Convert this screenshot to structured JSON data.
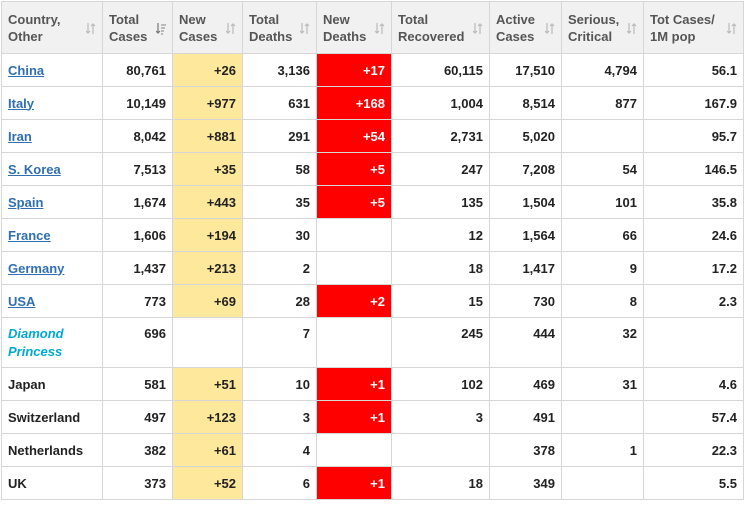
{
  "headers": [
    {
      "line1": "Country,",
      "line2": "Other"
    },
    {
      "line1": "Total",
      "line2": "Cases"
    },
    {
      "line1": "New",
      "line2": "Cases"
    },
    {
      "line1": "Total",
      "line2": "Deaths"
    },
    {
      "line1": "New",
      "line2": "Deaths"
    },
    {
      "line1": "Total",
      "line2": "Recovered"
    },
    {
      "line1": "Active",
      "line2": "Cases"
    },
    {
      "line1": "Serious,",
      "line2": "Critical"
    },
    {
      "line1": "Tot Cases/",
      "line2": "1M pop"
    }
  ],
  "icons": {
    "sort": "sort-arrows-icon",
    "sorted_desc": "sort-desc-icon"
  },
  "colors": {
    "new_cases_bg": "#fde89b",
    "new_deaths_bg": "#ff0000",
    "link": "#2f6fb0",
    "ship": "#00a9d4"
  },
  "rows": [
    {
      "country": "China",
      "link": true,
      "total_cases": "80,761",
      "new_cases": "+26",
      "total_deaths": "3,136",
      "new_deaths": "+17",
      "recovered": "60,115",
      "active": "17,510",
      "serious": "4,794",
      "per_million": "56.1"
    },
    {
      "country": "Italy",
      "link": true,
      "total_cases": "10,149",
      "new_cases": "+977",
      "total_deaths": "631",
      "new_deaths": "+168",
      "recovered": "1,004",
      "active": "8,514",
      "serious": "877",
      "per_million": "167.9"
    },
    {
      "country": "Iran",
      "link": true,
      "total_cases": "8,042",
      "new_cases": "+881",
      "total_deaths": "291",
      "new_deaths": "+54",
      "recovered": "2,731",
      "active": "5,020",
      "serious": "",
      "per_million": "95.7"
    },
    {
      "country": "S. Korea",
      "link": true,
      "total_cases": "7,513",
      "new_cases": "+35",
      "total_deaths": "58",
      "new_deaths": "+5",
      "recovered": "247",
      "active": "7,208",
      "serious": "54",
      "per_million": "146.5"
    },
    {
      "country": "Spain",
      "link": true,
      "total_cases": "1,674",
      "new_cases": "+443",
      "total_deaths": "35",
      "new_deaths": "+5",
      "recovered": "135",
      "active": "1,504",
      "serious": "101",
      "per_million": "35.8"
    },
    {
      "country": "France",
      "link": true,
      "total_cases": "1,606",
      "new_cases": "+194",
      "total_deaths": "30",
      "new_deaths": "",
      "recovered": "12",
      "active": "1,564",
      "serious": "66",
      "per_million": "24.6"
    },
    {
      "country": "Germany",
      "link": true,
      "total_cases": "1,437",
      "new_cases": "+213",
      "total_deaths": "2",
      "new_deaths": "",
      "recovered": "18",
      "active": "1,417",
      "serious": "9",
      "per_million": "17.2"
    },
    {
      "country": "USA",
      "link": true,
      "total_cases": "773",
      "new_cases": "+69",
      "total_deaths": "28",
      "new_deaths": "+2",
      "recovered": "15",
      "active": "730",
      "serious": "8",
      "per_million": "2.3"
    },
    {
      "country": "Diamond Princess",
      "ship": true,
      "line1": "Diamond",
      "line2": "Princess",
      "total_cases": "696",
      "new_cases": "",
      "total_deaths": "7",
      "new_deaths": "",
      "recovered": "245",
      "active": "444",
      "serious": "32",
      "per_million": ""
    },
    {
      "country": "Japan",
      "total_cases": "581",
      "new_cases": "+51",
      "total_deaths": "10",
      "new_deaths": "+1",
      "recovered": "102",
      "active": "469",
      "serious": "31",
      "per_million": "4.6"
    },
    {
      "country": "Switzerland",
      "total_cases": "497",
      "new_cases": "+123",
      "total_deaths": "3",
      "new_deaths": "+1",
      "recovered": "3",
      "active": "491",
      "serious": "",
      "per_million": "57.4"
    },
    {
      "country": "Netherlands",
      "total_cases": "382",
      "new_cases": "+61",
      "total_deaths": "4",
      "new_deaths": "",
      "recovered": "",
      "active": "378",
      "serious": "1",
      "per_million": "22.3"
    },
    {
      "country": "UK",
      "total_cases": "373",
      "new_cases": "+52",
      "total_deaths": "6",
      "new_deaths": "+1",
      "recovered": "18",
      "active": "349",
      "serious": "",
      "per_million": "5.5"
    }
  ]
}
